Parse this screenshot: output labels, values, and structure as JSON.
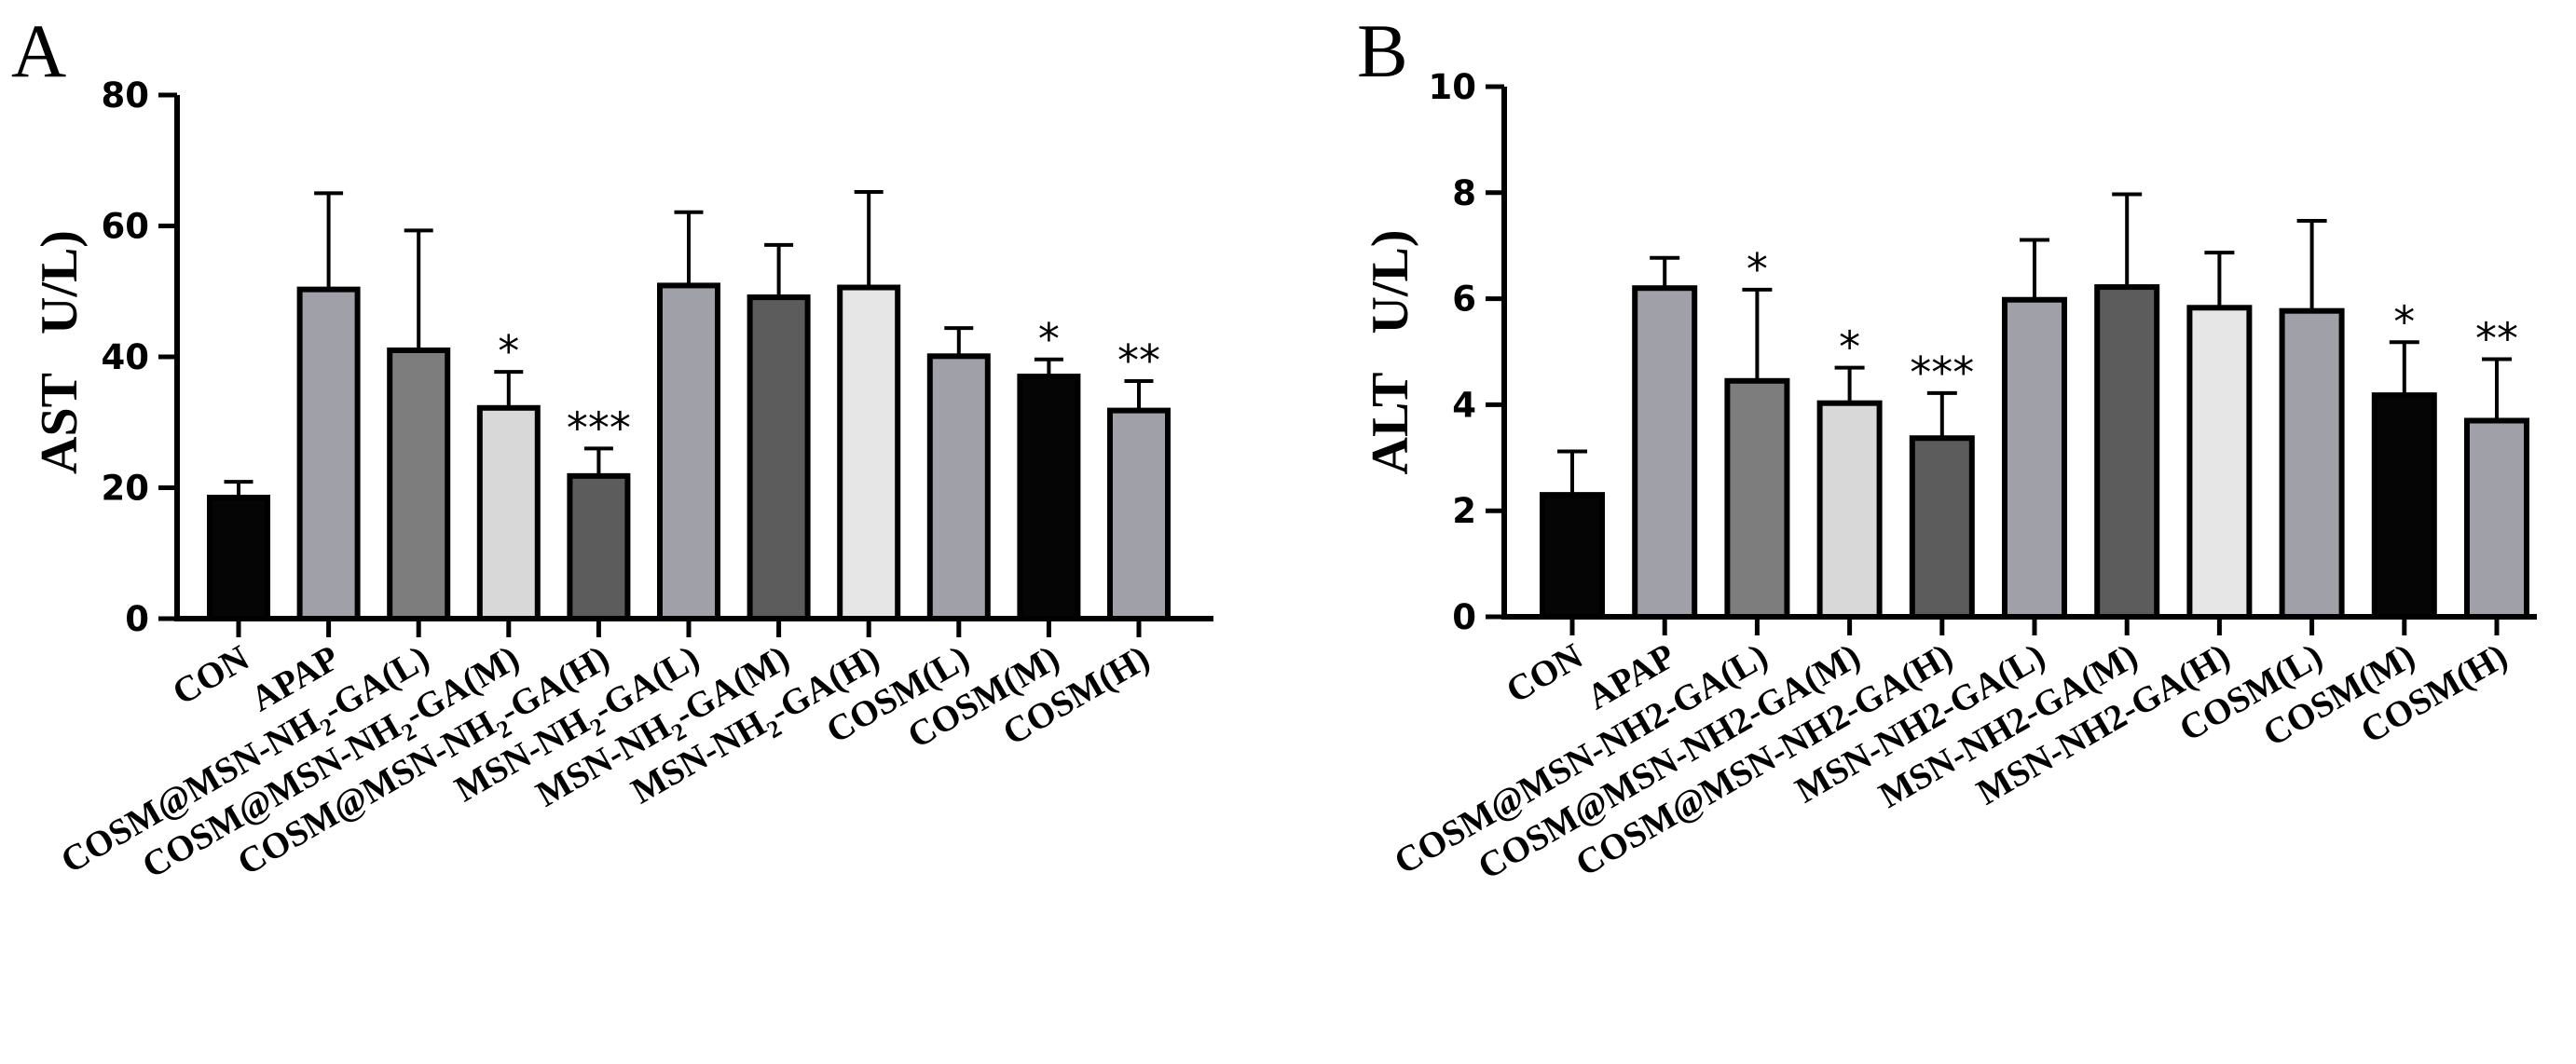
{
  "chart_data": [
    {
      "panel": "A",
      "type": "bar",
      "ylabel": "AST   U/L)",
      "ylim": [
        0,
        80
      ],
      "yticks": [
        0,
        20,
        40,
        60,
        80
      ],
      "categories": [
        "CON",
        "APAP",
        "COSM@MSN-NH2-GA(L)",
        "COSM@MSN-NH2-GA(M)",
        "COSM@MSN-NH2-GA(H)",
        "MSN-NH2-GA(L)",
        "MSN-NH2-GA(M)",
        "MSN-NH2-GA(H)",
        "COSM(L)",
        "COSM(M)",
        "COSM(H)"
      ],
      "subscript_2_in_labels": true,
      "values": [
        18.5,
        50.3,
        41,
        32.2,
        21.8,
        50.9,
        49.1,
        50.6,
        40.1,
        37,
        31.8
      ],
      "errors": [
        2.4,
        14.7,
        18.3,
        5.5,
        4.2,
        11.2,
        8,
        14.6,
        4.3,
        2.6,
        4.5
      ],
      "significance": [
        "",
        "",
        "",
        "*",
        "***",
        "",
        "",
        "",
        "",
        "*",
        "**"
      ],
      "bar_colors": [
        "#050505",
        "#a0a0a8",
        "#7d7d7d",
        "#d8d8d8",
        "#5c5c5c",
        "#a0a0a8",
        "#5c5c5c",
        "#e6e6e6",
        "#a0a0a8",
        "#050505",
        "#a0a0a8"
      ]
    },
    {
      "panel": "B",
      "type": "bar",
      "ylabel": "ALT   U/L)",
      "ylim": [
        0,
        10
      ],
      "yticks": [
        0,
        2,
        4,
        6,
        8,
        10
      ],
      "categories": [
        "CON",
        "APAP",
        "COSM@MSN-NH2-GA(L)",
        "COSM@MSN-NH2-GA(M)",
        "COSM@MSN-NH2-GA(H)",
        "MSN-NH2-GA(L)",
        "MSN-NH2-GA(M)",
        "MSN-NH2-GA(H)",
        "COSM(L)",
        "COSM(M)",
        "COSM(H)"
      ],
      "subscript_2_in_labels": false,
      "values": [
        2.3,
        6.2,
        4.45,
        4.03,
        3.37,
        5.98,
        6.22,
        5.83,
        5.77,
        4.18,
        3.7
      ],
      "errors": [
        0.82,
        0.57,
        1.72,
        0.67,
        0.85,
        1.13,
        1.75,
        1.04,
        1.7,
        1.0,
        1.16
      ],
      "significance": [
        "",
        "",
        "*",
        "*",
        "***",
        "",
        "",
        "",
        "",
        "*",
        "**"
      ],
      "bar_colors": [
        "#050505",
        "#a0a0a8",
        "#7d7d7d",
        "#d8d8d8",
        "#5c5c5c",
        "#a0a0a8",
        "#5c5c5c",
        "#e6e6e6",
        "#a0a0a8",
        "#050505",
        "#a0a0a8"
      ]
    }
  ]
}
